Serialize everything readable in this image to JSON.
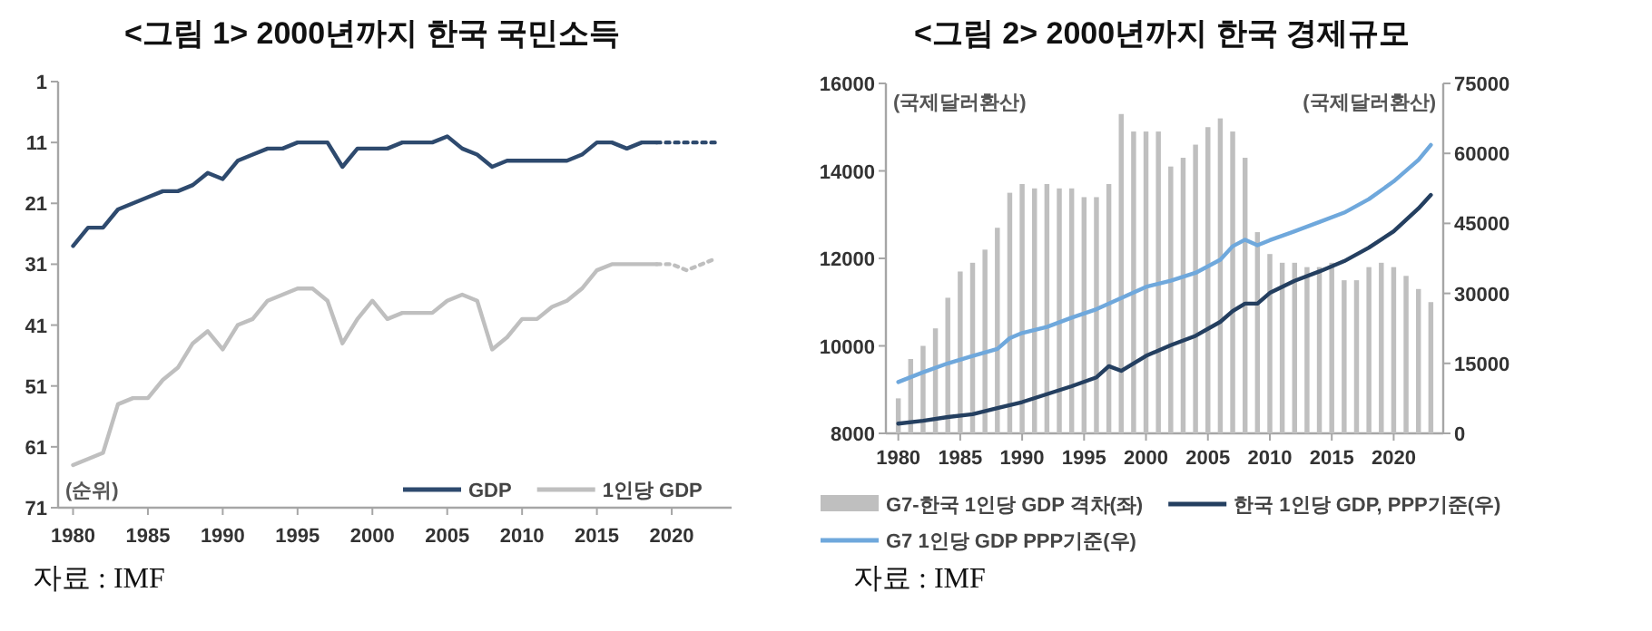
{
  "chart_data": [
    {
      "type": "line",
      "title": "<그림 1> 2000년까지 한국 국민소득",
      "xlim": [
        1979,
        2024
      ],
      "xticks": [
        1980,
        1985,
        1990,
        1995,
        2000,
        2005,
        2010,
        2015,
        2020
      ],
      "ylim": [
        71,
        1
      ],
      "yticks": [
        1,
        11,
        21,
        31,
        41,
        51,
        61,
        71
      ],
      "legend": "bottom right",
      "annotations": [
        "(순위)",
        "자료 : IMF"
      ],
      "x": [
        1980,
        1981,
        1982,
        1983,
        1984,
        1985,
        1986,
        1987,
        1988,
        1989,
        1990,
        1991,
        1992,
        1993,
        1994,
        1995,
        1996,
        1997,
        1998,
        1999,
        2000,
        2001,
        2002,
        2003,
        2004,
        2005,
        2006,
        2007,
        2008,
        2009,
        2010,
        2011,
        2012,
        2013,
        2014,
        2015,
        2016,
        2017,
        2018,
        2019
      ],
      "series": [
        {
          "name": "GDP",
          "color": "#2e4a6e",
          "values": [
            28,
            25,
            25,
            22,
            21,
            20,
            19,
            19,
            18,
            16,
            17,
            14,
            13,
            12,
            12,
            11,
            11,
            11,
            15,
            12,
            12,
            12,
            11,
            11,
            11,
            10,
            12,
            13,
            15,
            14,
            14,
            14,
            14,
            14,
            13,
            11,
            11,
            12,
            11,
            11
          ]
        },
        {
          "name": "1인당 GDP",
          "color": "#bfbfbf",
          "values": [
            64,
            63,
            62,
            54,
            53,
            53,
            50,
            48,
            44,
            42,
            45,
            41,
            40,
            37,
            36,
            35,
            35,
            37,
            44,
            40,
            37,
            40,
            39,
            39,
            39,
            37,
            36,
            37,
            45,
            43,
            40,
            40,
            38,
            37,
            35,
            32,
            31,
            31,
            31,
            31
          ]
        },
        {
          "color": "#2e4a6e",
          "line_style": "dotted",
          "x": [
            2019,
            2020,
            2021,
            2022,
            2023
          ],
          "values": [
            11,
            11,
            11,
            11,
            11
          ]
        },
        {
          "color": "#bfbfbf",
          "line_style": "dotted",
          "x": [
            2019,
            2020,
            2021,
            2022,
            2023
          ],
          "values": [
            31,
            31,
            32,
            31,
            30
          ]
        }
      ]
    },
    {
      "type": "bar",
      "title": "<그림 2> 2000년까지 한국 경제규모",
      "xlim": [
        1979,
        2024
      ],
      "xticks": [
        1980,
        1985,
        1990,
        1995,
        2000,
        2005,
        2010,
        2015,
        2020
      ],
      "ylim": [
        8000,
        16000
      ],
      "yticks": [
        8000,
        10000,
        12000,
        14000,
        16000
      ],
      "y2lim": [
        0,
        75000
      ],
      "y2ticks": [
        0,
        15000,
        30000,
        45000,
        60000,
        75000
      ],
      "legend": "bottom",
      "annotations": [
        "(국제달러환산)",
        "(국제달러환산)",
        "자료 : IMF"
      ],
      "series": [
        {
          "name": "G7-한국 1인당 GDP 격차(좌)",
          "color": "#bfbfbf",
          "x": [
            1980,
            1981,
            1982,
            1983,
            1984,
            1985,
            1986,
            1987,
            1988,
            1989,
            1990,
            1991,
            1992,
            1993,
            1994,
            1995,
            1996,
            1997,
            1998,
            1999,
            2000,
            2001,
            2002,
            2003,
            2004,
            2005,
            2006,
            2007,
            2008,
            2009,
            2010,
            2011,
            2012,
            2013,
            2014,
            2015,
            2016,
            2017,
            2018,
            2019,
            2020,
            2021,
            2022,
            2023
          ],
          "values": [
            8800,
            9700,
            10000,
            10400,
            11100,
            11700,
            11900,
            12200,
            12700,
            13500,
            13700,
            13600,
            13700,
            13600,
            13600,
            13400,
            13400,
            13700,
            15300,
            14900,
            14900,
            14900,
            14100,
            14300,
            14600,
            15000,
            15200,
            14900,
            14300,
            12600,
            12100,
            11900,
            11900,
            11800,
            11800,
            11900,
            11500,
            11500,
            11800,
            11900,
            11800,
            11600,
            11300,
            11000
          ]
        },
        {
          "type": "line",
          "axis": "y2",
          "name": "한국 1인당 GDP, PPP기준(우)",
          "color": "#243f60",
          "x": [
            1980,
            1982,
            1984,
            1986,
            1988,
            1990,
            1992,
            1994,
            1996,
            1997,
            1998,
            2000,
            2002,
            2004,
            2006,
            2007,
            2008,
            2009,
            2010,
            2012,
            2014,
            2016,
            2018,
            2020,
            2022,
            2023
          ],
          "values": [
            2100,
            2700,
            3500,
            4100,
            5400,
            6700,
            8400,
            10100,
            12000,
            14400,
            13400,
            16600,
            18900,
            20900,
            23900,
            26200,
            27800,
            27800,
            30100,
            32700,
            34700,
            36900,
            39800,
            43300,
            48200,
            51100
          ]
        },
        {
          "type": "line",
          "axis": "y2",
          "name": "G7 1인당 GDP PPP기준(우)",
          "color": "#6fa8dc",
          "x": [
            1980,
            1982,
            1984,
            1986,
            1988,
            1989,
            1990,
            1992,
            1994,
            1996,
            1998,
            2000,
            2002,
            2004,
            2006,
            2007,
            2008,
            2009,
            2010,
            2012,
            2014,
            2016,
            2018,
            2020,
            2022,
            2023
          ],
          "values": [
            11000,
            13100,
            15000,
            16600,
            18100,
            20400,
            21500,
            22800,
            24800,
            26600,
            29000,
            31400,
            32700,
            34400,
            37200,
            40100,
            41500,
            40300,
            41400,
            43300,
            45300,
            47300,
            50200,
            54000,
            58600,
            61800
          ]
        }
      ]
    }
  ]
}
